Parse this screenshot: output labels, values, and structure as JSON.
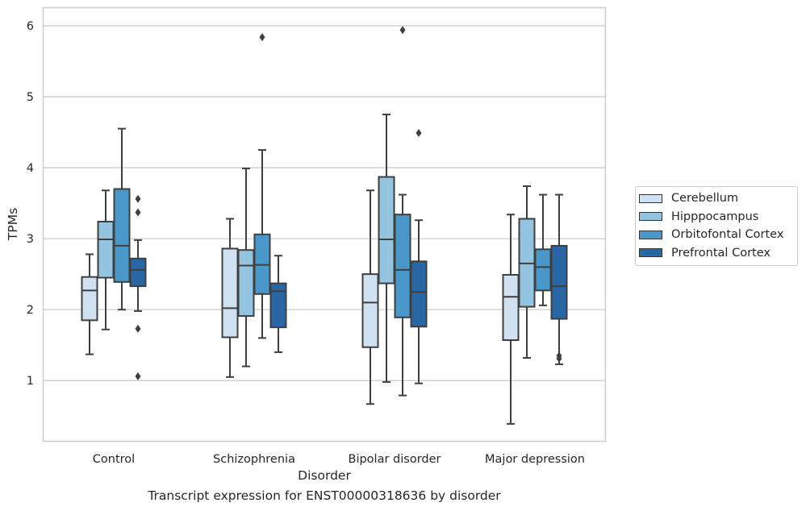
{
  "chart_data": {
    "type": "box",
    "title": "",
    "xlabel": "Disorder",
    "ylabel": "TPMs",
    "ylim": [
      0.15,
      6.25
    ],
    "yticks": [
      1,
      2,
      3,
      4,
      5,
      6
    ],
    "ytick_labels": [
      "1",
      "2",
      "3",
      "4",
      "5",
      "6"
    ],
    "categories": [
      "Control",
      "Schizophrenia",
      "Bipolar disorder",
      "Major depression"
    ],
    "grid": "horizontal",
    "legend_position": "right",
    "series": [
      {
        "name": "Cerebellum",
        "color": "#d0e1f2",
        "boxes": [
          {
            "whisker_low": 1.37,
            "q1": 1.85,
            "median": 2.27,
            "q3": 2.46,
            "whisker_high": 2.78,
            "outliers": []
          },
          {
            "whisker_low": 1.05,
            "q1": 1.61,
            "median": 2.02,
            "q3": 2.86,
            "whisker_high": 3.28,
            "outliers": []
          },
          {
            "whisker_low": 0.67,
            "q1": 1.47,
            "median": 2.1,
            "q3": 2.5,
            "whisker_high": 3.68,
            "outliers": []
          },
          {
            "whisker_low": 0.39,
            "q1": 1.57,
            "median": 2.18,
            "q3": 2.49,
            "whisker_high": 3.34,
            "outliers": []
          }
        ]
      },
      {
        "name": "Hipppocampus",
        "color": "#94c4df",
        "boxes": [
          {
            "whisker_low": 1.72,
            "q1": 2.45,
            "median": 2.99,
            "q3": 3.24,
            "whisker_high": 3.68,
            "outliers": []
          },
          {
            "whisker_low": 1.2,
            "q1": 1.91,
            "median": 2.62,
            "q3": 2.84,
            "whisker_high": 3.99,
            "outliers": []
          },
          {
            "whisker_low": 0.98,
            "q1": 2.37,
            "median": 2.99,
            "q3": 3.87,
            "whisker_high": 4.75,
            "outliers": []
          },
          {
            "whisker_low": 1.32,
            "q1": 2.04,
            "median": 2.65,
            "q3": 3.28,
            "whisker_high": 3.74,
            "outliers": []
          }
        ]
      },
      {
        "name": "Orbitofontal Cortex",
        "color": "#4a98c9",
        "boxes": [
          {
            "whisker_low": 2.0,
            "q1": 2.39,
            "median": 2.9,
            "q3": 3.7,
            "whisker_high": 4.55,
            "outliers": []
          },
          {
            "whisker_low": 1.6,
            "q1": 2.22,
            "median": 2.63,
            "q3": 3.06,
            "whisker_high": 4.25,
            "outliers": [
              5.84
            ]
          },
          {
            "whisker_low": 0.79,
            "q1": 1.89,
            "median": 2.56,
            "q3": 3.34,
            "whisker_high": 3.62,
            "outliers": [
              5.94
            ]
          },
          {
            "whisker_low": 2.06,
            "q1": 2.27,
            "median": 2.6,
            "q3": 2.85,
            "whisker_high": 3.62,
            "outliers": []
          }
        ]
      },
      {
        "name": "Prefrontal Cortex",
        "color": "#2866a4",
        "boxes": [
          {
            "whisker_low": 1.98,
            "q1": 2.33,
            "median": 2.56,
            "q3": 2.72,
            "whisker_high": 2.98,
            "outliers": [
              3.56,
              3.37,
              1.73,
              1.06
            ]
          },
          {
            "whisker_low": 1.4,
            "q1": 1.75,
            "median": 2.26,
            "q3": 2.37,
            "whisker_high": 2.76,
            "outliers": []
          },
          {
            "whisker_low": 0.96,
            "q1": 1.76,
            "median": 2.25,
            "q3": 2.68,
            "whisker_high": 3.26,
            "outliers": [
              4.49
            ]
          },
          {
            "whisker_low": 1.23,
            "q1": 1.87,
            "median": 2.33,
            "q3": 2.9,
            "whisker_high": 3.62,
            "outliers": [
              1.35,
              1.31
            ]
          }
        ]
      }
    ]
  },
  "caption": "Transcript expression for ENST00000318636 by disorder"
}
